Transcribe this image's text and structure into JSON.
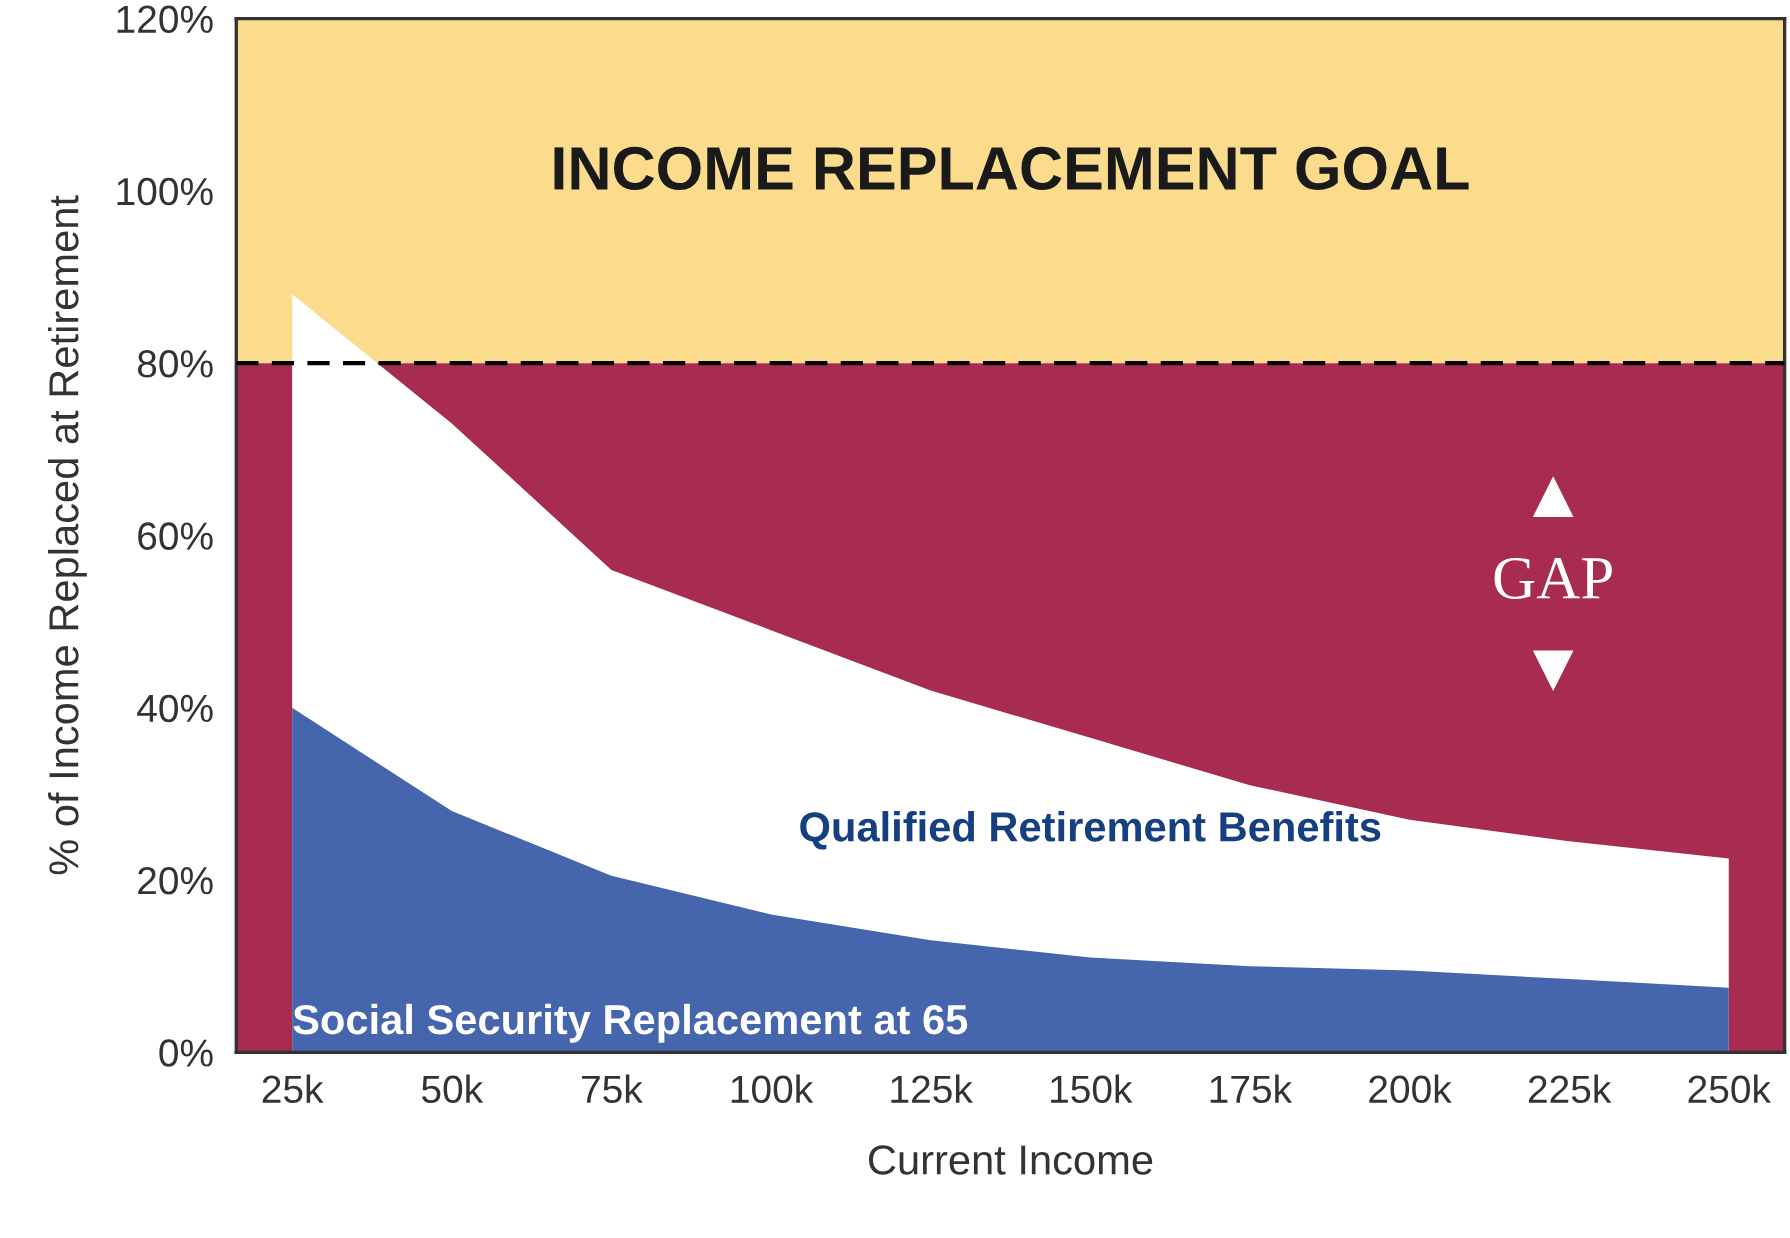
{
  "chart_data": {
    "type": "area",
    "stacked": true,
    "xlabel": "Current Income",
    "ylabel": "% of Income Replaced at Retirement",
    "categories": [
      "25k",
      "50k",
      "75k",
      "100k",
      "125k",
      "150k",
      "175k",
      "200k",
      "225k",
      "250k"
    ],
    "series": [
      {
        "name": "Social Security Replacement at 65",
        "color": "#4565ad",
        "values": [
          40,
          28,
          20.5,
          16,
          13,
          11,
          10,
          9.5,
          8.5,
          7.5
        ]
      },
      {
        "name": "Qualified Retirement Benefits",
        "color": "#ffffff",
        "values": [
          48,
          45,
          35.5,
          33,
          29,
          25.5,
          21,
          17.5,
          16,
          15
        ]
      }
    ],
    "bands": [
      {
        "axis": "y",
        "from": 80,
        "to": 120,
        "label": "INCOME REPLACEMENT GOAL",
        "color": "#fbdc8c"
      },
      {
        "axis": "y",
        "from": 0,
        "to": 80,
        "label": "GAP",
        "color": "#a82c50"
      }
    ],
    "ref_lines": [
      {
        "axis": "y",
        "value": 80,
        "color": "#000000",
        "line_style": "dashed"
      }
    ],
    "ylim": [
      0,
      120
    ],
    "yticks": [
      {
        "value": 0,
        "label": "0%"
      },
      {
        "value": 20,
        "label": "20%"
      },
      {
        "value": 40,
        "label": "40%"
      },
      {
        "value": 60,
        "label": "60%"
      },
      {
        "value": 80,
        "label": "80%"
      },
      {
        "value": 100,
        "label": "100%"
      },
      {
        "value": 120,
        "label": "120%"
      }
    ],
    "grid": false,
    "legend": false
  }
}
